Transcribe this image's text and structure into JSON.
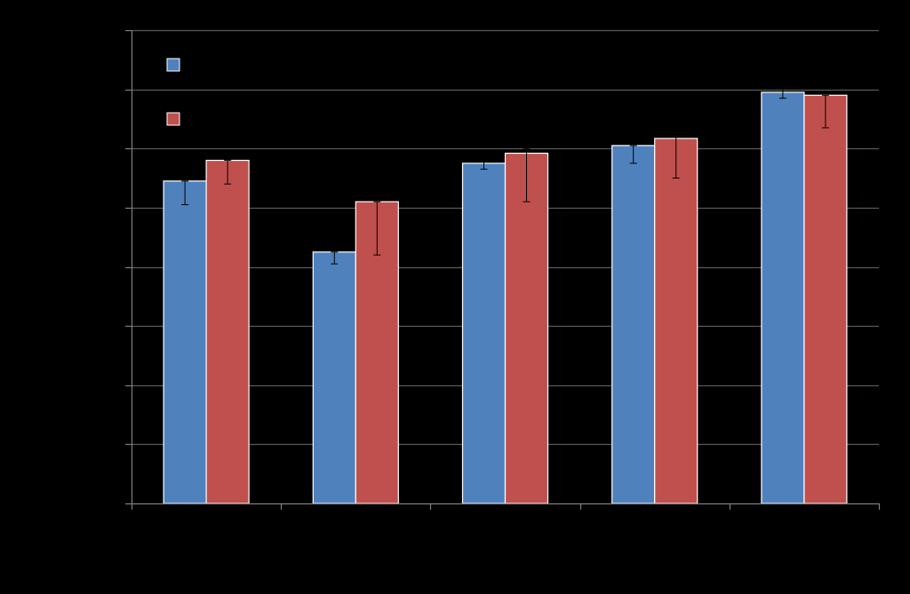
{
  "chart_data": {
    "type": "bar",
    "categories": [
      "",
      "",
      "",
      "",
      ""
    ],
    "series": [
      {
        "color": "#4F81BD",
        "values": [
          5.45,
          4.25,
          5.75,
          6.05,
          6.95
        ],
        "error_low": [
          5.05,
          4.05,
          5.65,
          5.75,
          6.85
        ],
        "error_high": [
          5.45,
          4.25,
          5.8,
          6.05,
          7.05
        ]
      },
      {
        "color": "#C0504D",
        "values": [
          5.8,
          5.1,
          5.92,
          6.17,
          6.9
        ],
        "error_low": [
          5.4,
          4.2,
          5.1,
          5.5,
          6.35
        ],
        "error_high": [
          5.8,
          5.1,
          6.0,
          6.2,
          6.9
        ]
      }
    ],
    "ylim": [
      0,
      8
    ],
    "y_gridlines": [
      1,
      2,
      3,
      4,
      5,
      6,
      7,
      8
    ],
    "grid": true,
    "legend_placement": "top-left",
    "colors": {
      "background": "#000000",
      "axis": "#7F7F7F",
      "grid": "#595959",
      "bar_border": "#FFFFFF",
      "error_bar": "#000000"
    }
  }
}
